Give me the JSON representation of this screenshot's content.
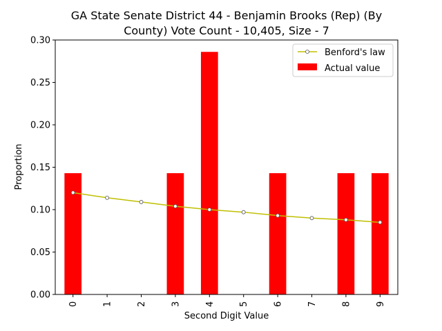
{
  "chart_data": {
    "type": "bar",
    "title_lines": [
      "GA State Senate District 44 - Benjamin Brooks (Rep) (By",
      "County) Vote Count - 10,405, Size - 7"
    ],
    "xlabel": "Second Digit Value",
    "ylabel": "Proportion",
    "categories": [
      "0",
      "1",
      "2",
      "3",
      "4",
      "5",
      "6",
      "7",
      "8",
      "9"
    ],
    "ylim": [
      0,
      0.3
    ],
    "yticks": [
      0.0,
      0.05,
      0.1,
      0.15,
      0.2,
      0.25,
      0.3
    ],
    "ytick_labels": [
      "0.00",
      "0.05",
      "0.10",
      "0.15",
      "0.20",
      "0.25",
      "0.30"
    ],
    "grid": false,
    "legend_position": "top-right",
    "series": [
      {
        "name": "Actual value",
        "kind": "bar",
        "color": "#ff0000",
        "values": [
          0.143,
          0,
          0,
          0.143,
          0.286,
          0,
          0.143,
          0,
          0.143,
          0.143
        ]
      },
      {
        "name": "Benford's law",
        "kind": "line",
        "color": "#bfbf00",
        "values": [
          0.12,
          0.114,
          0.109,
          0.104,
          0.1,
          0.097,
          0.093,
          0.09,
          0.088,
          0.085
        ]
      }
    ]
  }
}
